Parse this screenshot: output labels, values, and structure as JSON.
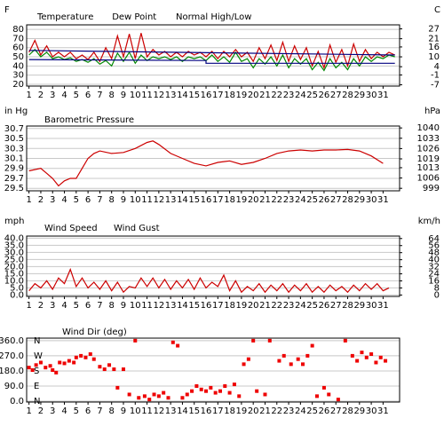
{
  "chart_data": [
    {
      "type": "line",
      "ylabel": "F",
      "y2label": "C",
      "xlim": [
        0.8,
        32.4
      ],
      "xticks": [
        1,
        2,
        3,
        4,
        5,
        6,
        7,
        8,
        9,
        10,
        11,
        12,
        13,
        14,
        15,
        16,
        17,
        18,
        19,
        20,
        21,
        22,
        23,
        24,
        25,
        26,
        27,
        28,
        29,
        30,
        31
      ],
      "ylim": [
        18,
        85
      ],
      "yticks": [
        80,
        70,
        60,
        50,
        40,
        30,
        20
      ],
      "y2lim": [
        -7.78,
        29.44
      ],
      "y2ticks": [
        27,
        21,
        16,
        10,
        4,
        -1,
        -7
      ],
      "grid": true,
      "series": [
        {
          "name": "Temperature",
          "color": "#cc0000",
          "x": [
            1,
            1.5,
            2,
            2.5,
            3,
            3.5,
            4,
            4.5,
            5,
            5.5,
            6,
            6.5,
            7,
            7.5,
            8,
            8.5,
            9,
            9.5,
            10,
            10.5,
            11,
            11.5,
            12,
            12.5,
            13,
            13.5,
            14,
            14.5,
            15,
            15.5,
            16,
            16.5,
            17,
            17.5,
            18,
            18.5,
            19,
            19.5,
            20,
            20.5,
            21,
            21.5,
            22,
            22.5,
            23,
            23.5,
            24,
            24.5,
            25,
            25.5,
            26,
            26.5,
            27,
            27.5,
            28,
            28.5,
            29,
            29.5,
            30,
            30.5,
            31,
            31.5,
            32
          ],
          "values": [
            55,
            68,
            52,
            62,
            50,
            55,
            50,
            55,
            48,
            52,
            47,
            55,
            45,
            60,
            48,
            73,
            50,
            75,
            48,
            76,
            50,
            58,
            52,
            56,
            50,
            55,
            50,
            56,
            52,
            55,
            50,
            56,
            48,
            56,
            50,
            58,
            50,
            55,
            45,
            60,
            48,
            63,
            46,
            66,
            45,
            62,
            47,
            60,
            40,
            56,
            38,
            63,
            44,
            58,
            40,
            64,
            45,
            58,
            48,
            55,
            50,
            55,
            52
          ]
        },
        {
          "name": "Dew Point",
          "color": "#008800",
          "x": [
            1,
            1.5,
            2,
            2.5,
            3,
            3.5,
            4,
            4.5,
            5,
            5.5,
            6,
            6.5,
            7,
            7.5,
            8,
            8.5,
            9,
            9.5,
            10,
            10.5,
            11,
            11.5,
            12,
            12.5,
            13,
            13.5,
            14,
            14.5,
            15,
            15.5,
            16,
            16.5,
            17,
            17.5,
            18,
            18.5,
            19,
            19.5,
            20,
            20.5,
            21,
            21.5,
            22,
            22.5,
            23,
            23.5,
            24,
            24.5,
            25,
            25.5,
            26,
            26.5,
            27,
            27.5,
            28,
            28.5,
            29,
            29.5,
            30,
            30.5,
            31,
            31.5,
            32
          ],
          "values": [
            52,
            58,
            50,
            55,
            48,
            50,
            47,
            49,
            45,
            47,
            44,
            48,
            42,
            46,
            40,
            54,
            45,
            55,
            43,
            52,
            46,
            50,
            48,
            50,
            47,
            50,
            45,
            50,
            48,
            50,
            46,
            52,
            45,
            50,
            44,
            55,
            45,
            48,
            38,
            48,
            42,
            50,
            40,
            52,
            38,
            48,
            42,
            48,
            36,
            44,
            35,
            48,
            38,
            44,
            36,
            48,
            40,
            50,
            45,
            50,
            48,
            52,
            50
          ]
        },
        {
          "name": "Normal High/Low",
          "color": "#000080",
          "x": [
            1,
            32
          ],
          "values": [
            57,
            52
          ]
        },
        {
          "color": "#000080",
          "x": [
            1,
            16,
            16,
            32
          ],
          "values": [
            47,
            46,
            43,
            43
          ]
        }
      ]
    },
    {
      "type": "line",
      "title": "Barometric Pressure",
      "ylabel": "in Hg",
      "y2label": "hPa",
      "xlim": [
        0.8,
        32.4
      ],
      "xticks": [
        1,
        2,
        3,
        4,
        5,
        6,
        7,
        8,
        9,
        10,
        11,
        12,
        13,
        14,
        15,
        16,
        17,
        18,
        19,
        20,
        21,
        22,
        23,
        24,
        25,
        26,
        27,
        28,
        29,
        30,
        31
      ],
      "ylim": [
        29.45,
        30.75
      ],
      "yticks": [
        30.7,
        30.5,
        30.3,
        30.1,
        29.9,
        29.7,
        29.5
      ],
      "y2lim": [
        997.3,
        1041.3
      ],
      "y2ticks": [
        1040,
        1033,
        1026,
        1019,
        1013,
        1006,
        999
      ],
      "grid": true,
      "series": [
        {
          "color": "#cc0000",
          "x": [
            1,
            2,
            2.5,
            3,
            3.5,
            4,
            4.5,
            5,
            5.5,
            6,
            6.5,
            7,
            8,
            9,
            10,
            11,
            11.5,
            12,
            13,
            14,
            15,
            16,
            17,
            18,
            19,
            20,
            21,
            22,
            23,
            24,
            25,
            26,
            27,
            28,
            29,
            30,
            31
          ],
          "values": [
            29.85,
            29.9,
            29.8,
            29.7,
            29.55,
            29.65,
            29.7,
            29.7,
            29.9,
            30.1,
            30.2,
            30.25,
            30.2,
            30.22,
            30.3,
            30.42,
            30.45,
            30.38,
            30.2,
            30.1,
            30.0,
            29.95,
            30.02,
            30.05,
            29.98,
            30.02,
            30.1,
            30.2,
            30.25,
            30.27,
            30.25,
            30.27,
            30.27,
            30.28,
            30.25,
            30.15,
            30.0
          ]
        }
      ]
    },
    {
      "type": "line",
      "ylabel": "mph",
      "y2label": "km/h",
      "xlim": [
        0.8,
        32.4
      ],
      "xticks": [
        1,
        2,
        3,
        4,
        5,
        6,
        7,
        8,
        9,
        10,
        11,
        12,
        13,
        14,
        15,
        16,
        17,
        18,
        19,
        20,
        21,
        22,
        23,
        24,
        25,
        26,
        27,
        28,
        29,
        30,
        31
      ],
      "ylim": [
        -1,
        41.5
      ],
      "yticks": [
        {
          "value": 40,
          "label": "40.0"
        },
        {
          "value": 35,
          "label": "35.0"
        },
        {
          "value": 30,
          "label": "30.0"
        },
        {
          "value": 25,
          "label": "25.0"
        },
        {
          "value": 20,
          "label": "20.0"
        },
        {
          "value": 15,
          "label": "15.0"
        },
        {
          "value": 10,
          "label": "10.0"
        },
        {
          "value": 5,
          "label": "5.0"
        },
        {
          "value": 0,
          "label": "0.0"
        }
      ],
      "y2lim": [
        -1.61,
        66.8
      ],
      "y2ticks": [
        64,
        56,
        48,
        40,
        32,
        24,
        16,
        8,
        0
      ],
      "grid": true,
      "series": [
        {
          "name": "Wind Speed",
          "color": "#cc0000",
          "x": [
            1,
            1.5,
            2,
            2.5,
            3,
            3.5,
            4,
            4.5,
            5,
            5.5,
            6,
            6.5,
            7,
            7.5,
            8,
            8.5,
            9,
            9.5,
            10,
            10.5,
            11,
            11.5,
            12,
            12.5,
            13,
            13.5,
            14,
            14.5,
            15,
            15.5,
            16,
            16.5,
            17,
            17.5,
            18,
            18.5,
            19,
            19.5,
            20,
            20.5,
            21,
            21.5,
            22,
            22.5,
            23,
            23.5,
            24,
            24.5,
            25,
            25.5,
            26,
            26.5,
            27,
            27.5,
            28,
            28.5,
            29,
            29.5,
            30,
            30.5,
            31,
            31.5
          ],
          "values": [
            3,
            8,
            5,
            10,
            4,
            12,
            8,
            18,
            6,
            12,
            5,
            9,
            4,
            10,
            3,
            9,
            2,
            6,
            5,
            12,
            6,
            12,
            5,
            11,
            4,
            10,
            5,
            11,
            4,
            12,
            5,
            9,
            6,
            14,
            3,
            10,
            2,
            6,
            3,
            8,
            2,
            7,
            3,
            8,
            2,
            7,
            3,
            8,
            2,
            6,
            2,
            7,
            3,
            6,
            2,
            7,
            3,
            8,
            4,
            8,
            3,
            5
          ]
        },
        {
          "name": "Wind Gust",
          "color": "#000080",
          "x": [],
          "values": []
        }
      ]
    },
    {
      "type": "scatter",
      "title": "Wind Dir (deg)",
      "xlim": [
        0.8,
        32.4
      ],
      "xticks": [
        1,
        2,
        3,
        4,
        5,
        6,
        7,
        8,
        9,
        10,
        11,
        12,
        13,
        14,
        15,
        16,
        17,
        18,
        19,
        20,
        21,
        22,
        23,
        24,
        25,
        26,
        27,
        28,
        29,
        30,
        31
      ],
      "ylim": [
        -5,
        375
      ],
      "yticks": [
        {
          "value": 360,
          "label": "360.0"
        },
        {
          "value": 270,
          "label": "270.0"
        },
        {
          "value": 180,
          "label": "180.0"
        },
        {
          "value": 90,
          "label": "90.0"
        },
        {
          "value": 0,
          "label": "0.0"
        }
      ],
      "compass": [
        {
          "value": 360,
          "label": "N"
        },
        {
          "value": 270,
          "label": "W"
        },
        {
          "value": 180,
          "label": "S"
        },
        {
          "value": 90,
          "label": "E"
        },
        {
          "value": 0,
          "label": "N"
        }
      ],
      "grid": true,
      "series": [
        {
          "color": "#ee0000",
          "x": [
            1,
            1.3,
            1.6,
            2,
            2.4,
            2.8,
            3,
            3.3,
            3.6,
            4,
            4.4,
            4.8,
            5,
            5.4,
            5.8,
            6.2,
            6.5,
            7,
            7.4,
            7.8,
            8.2,
            8.5,
            9,
            9.5,
            10,
            10.3,
            10.8,
            11.2,
            11.6,
            12,
            12.4,
            12.8,
            13.2,
            13.6,
            14,
            14.4,
            14.8,
            15.2,
            15.6,
            16,
            16.4,
            16.8,
            17.2,
            17.6,
            18,
            18.4,
            18.8,
            19.2,
            19.6,
            20,
            20.3,
            21,
            21.4,
            22.2,
            22.6,
            23.2,
            23.8,
            24.2,
            24.6,
            25,
            25.4,
            26,
            26.4,
            27.2,
            27.8,
            28.4,
            28.8,
            29.2,
            29.6,
            30,
            30.4,
            30.8,
            31.2
          ],
          "values": [
            200,
            185,
            215,
            230,
            200,
            210,
            185,
            170,
            230,
            225,
            240,
            230,
            260,
            270,
            260,
            280,
            250,
            205,
            190,
            215,
            190,
            80,
            190,
            40,
            360,
            20,
            30,
            10,
            40,
            30,
            50,
            20,
            350,
            330,
            20,
            40,
            60,
            90,
            70,
            60,
            80,
            50,
            60,
            90,
            50,
            100,
            30,
            220,
            250,
            360,
            60,
            40,
            360,
            240,
            270,
            220,
            250,
            220,
            270,
            330,
            30,
            80,
            40,
            10,
            360,
            270,
            240,
            290,
            260,
            280,
            230,
            260,
            240
          ]
        }
      ]
    }
  ]
}
